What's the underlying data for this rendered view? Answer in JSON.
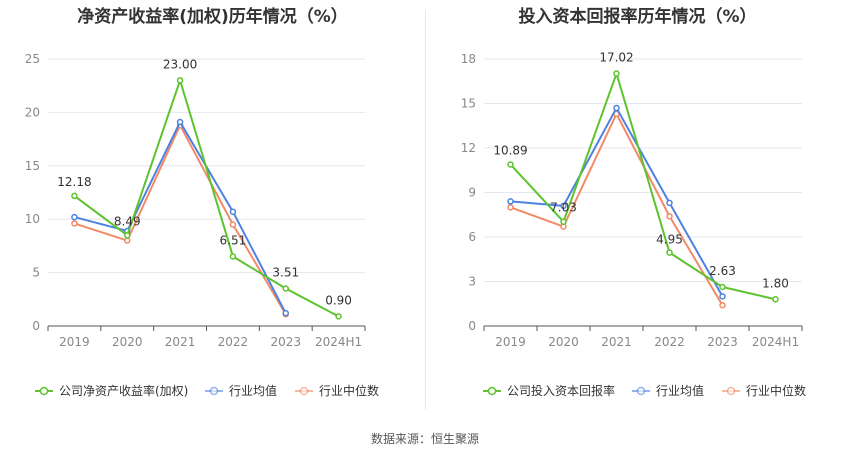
{
  "footer": {
    "source": "数据来源：恒生聚源"
  },
  "colors": {
    "company": "#5cc32d",
    "average": "#4f82e0",
    "median": "#f28a66",
    "grid": "#e6e6f0",
    "axis": "#555555"
  },
  "chart_data": [
    {
      "type": "line",
      "title": "净资产收益率(加权)历年情况（%）",
      "categories": [
        "2019",
        "2020",
        "2021",
        "2022",
        "2023",
        "2024H1"
      ],
      "ylim": [
        0,
        25
      ],
      "yticks": [
        "0",
        "5",
        "10",
        "15",
        "20",
        "25"
      ],
      "grid": true,
      "legend_position": "bottom",
      "series": [
        {
          "name": "公司净资产收益率(加权)",
          "color": "#5cc32d",
          "values": [
            12.18,
            8.49,
            23.0,
            6.51,
            3.51,
            0.9
          ],
          "labels": [
            "12.18",
            "8.49",
            "23.00",
            "6.51",
            "3.51",
            "0.90"
          ]
        },
        {
          "name": "行业均值",
          "color": "#4f82e0",
          "values": [
            10.2,
            8.9,
            19.1,
            10.7,
            1.2,
            null
          ]
        },
        {
          "name": "行业中位数",
          "color": "#f28a66",
          "values": [
            9.6,
            8.0,
            18.8,
            9.5,
            1.1,
            null
          ]
        }
      ]
    },
    {
      "type": "line",
      "title": "投入资本回报率历年情况（%）",
      "categories": [
        "2019",
        "2020",
        "2021",
        "2022",
        "2023",
        "2024H1"
      ],
      "ylim": [
        0,
        18
      ],
      "yticks": [
        "0",
        "3",
        "6",
        "9",
        "12",
        "15",
        "18"
      ],
      "grid": true,
      "legend_position": "bottom",
      "series": [
        {
          "name": "公司投入资本回报率",
          "color": "#5cc32d",
          "values": [
            10.89,
            7.03,
            17.02,
            4.95,
            2.63,
            1.8
          ],
          "labels": [
            "10.89",
            "7.03",
            "17.02",
            "4.95",
            "2.63",
            "1.80"
          ]
        },
        {
          "name": "行业均值",
          "color": "#4f82e0",
          "values": [
            8.4,
            8.1,
            14.7,
            8.3,
            2.0,
            null
          ]
        },
        {
          "name": "行业中位数",
          "color": "#f28a66",
          "values": [
            8.0,
            6.7,
            14.3,
            7.4,
            1.4,
            null
          ]
        }
      ]
    }
  ]
}
